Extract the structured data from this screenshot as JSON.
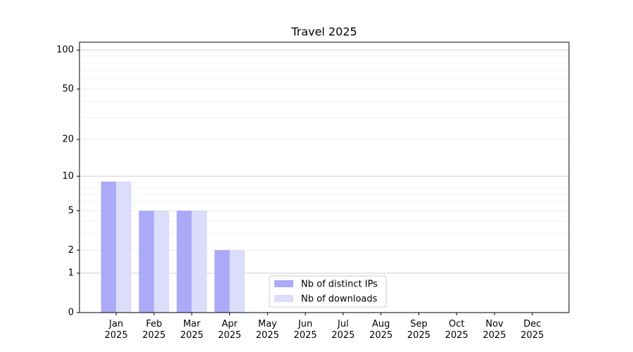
{
  "chart_data": {
    "type": "bar",
    "title": "Travel 2025",
    "categories": [
      "Jan\n2025",
      "Feb\n2025",
      "Mar\n2025",
      "Apr\n2025",
      "May\n2025",
      "Jun\n2025",
      "Jul\n2025",
      "Aug\n2025",
      "Sep\n2025",
      "Oct\n2025",
      "Nov\n2025",
      "Dec\n2025"
    ],
    "series": [
      {
        "name": "Nb of distinct IPs",
        "color": "#aaaaf8",
        "values": [
          9,
          5,
          5,
          2,
          0,
          0,
          0,
          0,
          0,
          0,
          0,
          0
        ]
      },
      {
        "name": "Nb of downloads",
        "color": "#dcdcfb",
        "values": [
          9,
          5,
          5,
          2,
          0,
          0,
          0,
          0,
          0,
          0,
          0,
          0
        ]
      }
    ],
    "yscale": "log1p",
    "ylim": [
      0,
      115
    ],
    "yticks": [
      0,
      1,
      2,
      5,
      10,
      20,
      50,
      100
    ],
    "minor_yticks": [
      3,
      4,
      6,
      7,
      8,
      9,
      30,
      40,
      60,
      70,
      80,
      90
    ],
    "grid": true,
    "legend": "lower center"
  }
}
